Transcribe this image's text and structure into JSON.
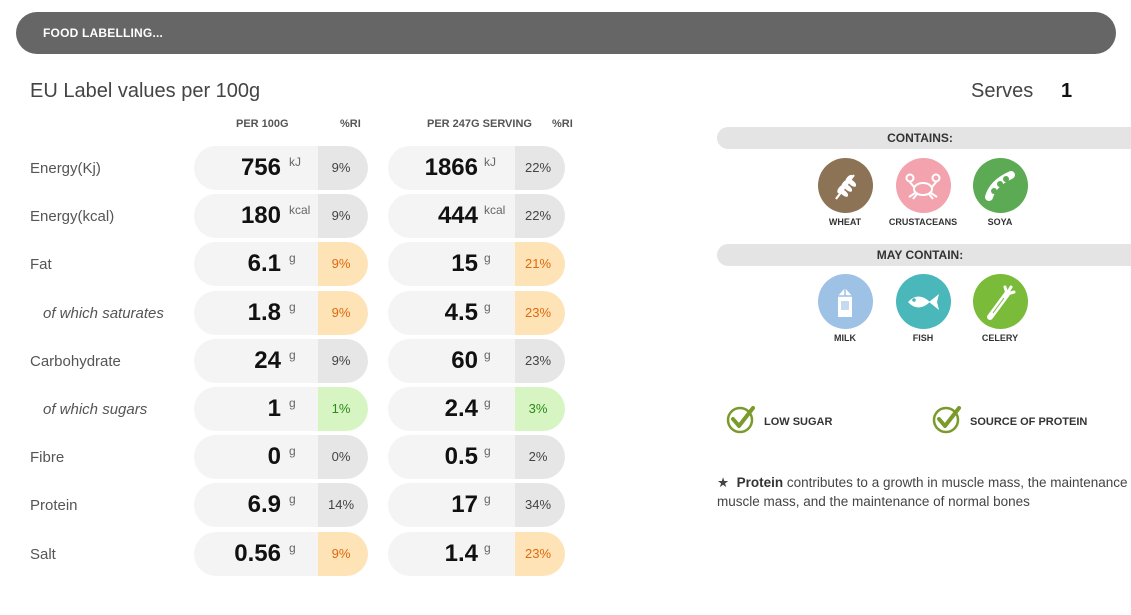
{
  "header": {
    "title": "FOOD LABELLING..."
  },
  "main": {
    "title": "EU Label values per 100g",
    "col_per100": "PER 100G",
    "col_ri1": "%RI",
    "col_serving": "PER 247G SERVING",
    "col_ri2": "%RI"
  },
  "rows": [
    {
      "label": "Energy(Kj)",
      "v100": "756",
      "u100": "kJ",
      "ri100": "9%",
      "vs": "1866",
      "us": "kJ",
      "ris": "22%"
    },
    {
      "label": "Energy(kcal)",
      "v100": "180",
      "u100": "kcal",
      "ri100": "9%",
      "vs": "444",
      "us": "kcal",
      "ris": "22%"
    },
    {
      "label": "Fat",
      "v100": "6.1",
      "u100": "g",
      "ri100": "9%",
      "vs": "15",
      "us": "g",
      "ris": "21%"
    },
    {
      "label": "of which saturates",
      "v100": "1.8",
      "u100": "g",
      "ri100": "9%",
      "vs": "4.5",
      "us": "g",
      "ris": "23%"
    },
    {
      "label": "Carbohydrate",
      "v100": "24",
      "u100": "g",
      "ri100": "9%",
      "vs": "60",
      "us": "g",
      "ris": "23%"
    },
    {
      "label": "of which sugars",
      "v100": "1",
      "u100": "g",
      "ri100": "1%",
      "vs": "2.4",
      "us": "g",
      "ris": "3%"
    },
    {
      "label": "Fibre",
      "v100": "0",
      "u100": "g",
      "ri100": "0%",
      "vs": "0.5",
      "us": "g",
      "ris": "2%"
    },
    {
      "label": "Protein",
      "v100": "6.9",
      "u100": "g",
      "ri100": "14%",
      "vs": "17",
      "us": "g",
      "ris": "34%"
    },
    {
      "label": "Salt",
      "v100": "0.56",
      "u100": "g",
      "ri100": "9%",
      "vs": "1.4",
      "us": "g",
      "ris": "23%"
    }
  ],
  "serves": {
    "label": "Serves",
    "value": "1"
  },
  "contains": {
    "title": "CONTAINS:",
    "items": [
      {
        "name": "WHEAT",
        "icon": "wheat-icon",
        "color": "#8c7355"
      },
      {
        "name": "CRUSTACEANS",
        "icon": "crab-icon",
        "color": "#f2a3ae"
      },
      {
        "name": "SOYA",
        "icon": "soya-icon",
        "color": "#5daa55"
      }
    ]
  },
  "may_contain": {
    "title": "MAY CONTAIN:",
    "items": [
      {
        "name": "MILK",
        "icon": "milk-icon",
        "color": "#9ec1e6"
      },
      {
        "name": "FISH",
        "icon": "fish-icon",
        "color": "#4ab7bb"
      },
      {
        "name": "CELERY",
        "icon": "celery-icon",
        "color": "#7bbb3a"
      }
    ]
  },
  "claims": [
    {
      "label": "LOW SUGAR",
      "icon": "checkmark-icon"
    },
    {
      "label": "SOURCE OF PROTEIN",
      "icon": "checkmark-icon"
    }
  ],
  "note": {
    "star": "★",
    "bold": "Protein",
    "line1": " contributes to a growth in muscle mass, the maintenance of",
    "line2": "muscle mass, and the maintenance of normal bones"
  },
  "colors": {
    "ri_neutral": "#e6e6e6",
    "ri_amber": "#fde3b5",
    "ri_green": "#d7f5c3",
    "check_green": "#7a9a2a"
  }
}
